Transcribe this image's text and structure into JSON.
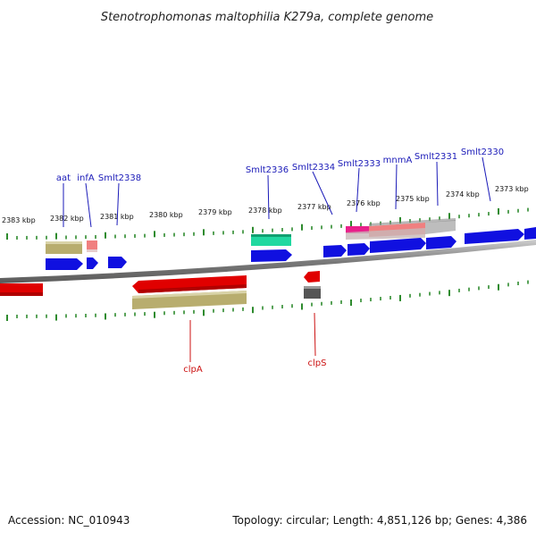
{
  "header": {
    "title": "Stenotrophomonas maltophilia K279a, complete genome"
  },
  "footer": {
    "accession": "Accession: NC_010943",
    "summary": "Topology: circular; Length: 4,851,126 bp; Genes: 4,386"
  },
  "axis": {
    "ticks": [
      {
        "label": "2383 kbp"
      },
      {
        "label": "2382 kbp"
      },
      {
        "label": "2381 kbp"
      },
      {
        "label": "2380 kbp"
      },
      {
        "label": "2379 kbp"
      },
      {
        "label": "2378 kbp"
      },
      {
        "label": "2377 kbp"
      },
      {
        "label": "2376 kbp"
      },
      {
        "label": "2375 kbp"
      },
      {
        "label": "2374 kbp"
      },
      {
        "label": "2373 kbp"
      }
    ]
  },
  "genes": {
    "top": [
      "aat",
      "infA",
      "Smlt2338",
      "Smlt2336",
      "Smlt2334",
      "Smlt2333",
      "mnmA",
      "Smlt2331",
      "Smlt2330"
    ],
    "bottom": [
      "clpA",
      "clpS"
    ]
  },
  "colors": {
    "forward_cds": "#1010e0",
    "reverse_cds": "#e00000",
    "feature_khaki": "#b8ad6e",
    "feature_pink": "#f08080",
    "feature_teal": "#20d8a0",
    "feature_grey": "#bdbdbd",
    "feature_dark": "#555555",
    "feature_magenta": "#e8208a",
    "backbone": "#8a8a8a",
    "tick": "#2e8b2e",
    "label_blue": "#1a1ab8",
    "label_red": "#cc1111"
  }
}
